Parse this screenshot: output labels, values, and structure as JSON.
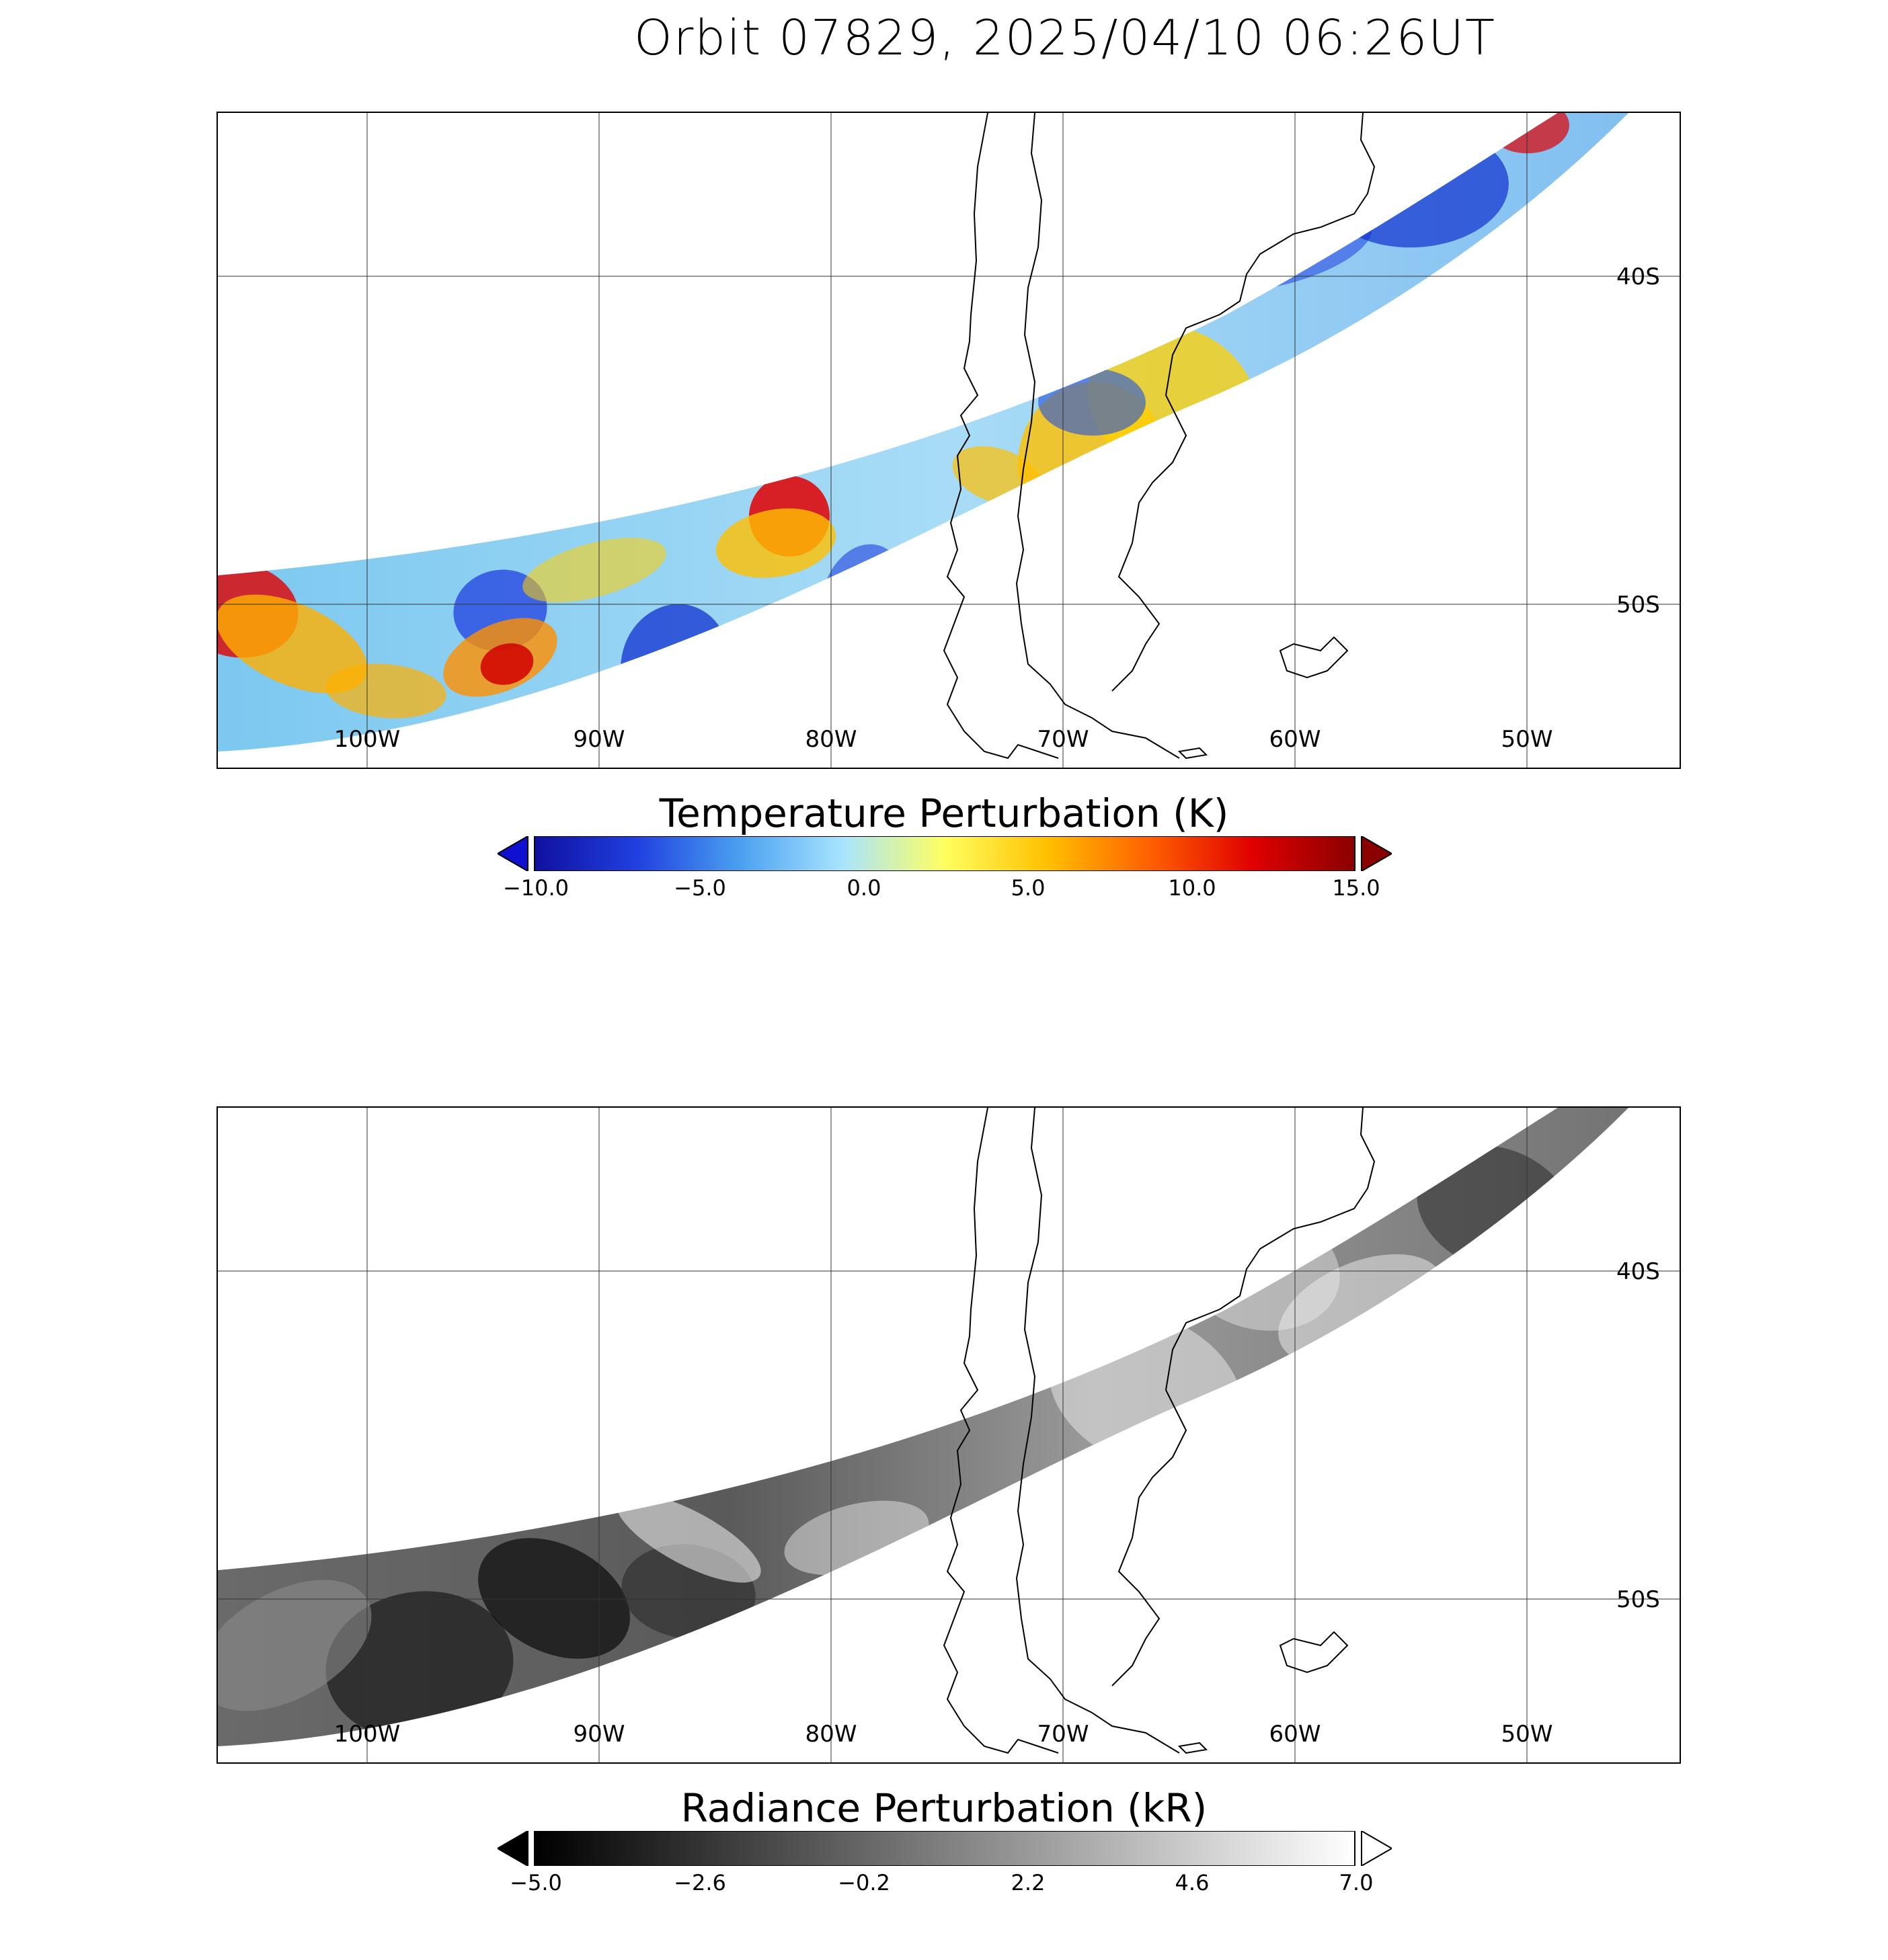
{
  "title": "Orbit 07829, 2025/04/10 06:26UT",
  "panels": [
    {
      "name": "temperature",
      "colorbar_title": "Temperature Perturbation (K)",
      "colorbar_ticks": [
        "−10.0",
        "−5.0",
        "0.0",
        "5.0",
        "10.0",
        "15.0"
      ],
      "colormap": [
        "#1010a0",
        "#2040e0",
        "#4aa0f0",
        "#a8e4ff",
        "#ffff60",
        "#ffc000",
        "#ff6000",
        "#e00000",
        "#8b0000"
      ]
    },
    {
      "name": "radiance",
      "colorbar_title": "Radiance Perturbation (kR)",
      "colorbar_ticks": [
        "−5.0",
        "−2.6",
        "−0.2",
        "2.2",
        "4.6",
        "7.0"
      ],
      "colormap": [
        "#000000",
        "#ffffff"
      ]
    }
  ],
  "map": {
    "lon_labels": [
      "100W",
      "90W",
      "80W",
      "70W",
      "60W",
      "50W"
    ],
    "lat_labels": [
      "40S",
      "50S"
    ]
  },
  "chart_data": [
    {
      "type": "heatmap",
      "title": "Orbit 07829, 2025/04/10 06:26UT",
      "colorbar_label": "Temperature Perturbation (K)",
      "color_range": [
        -10.0,
        15.0
      ],
      "colormap": "blue-white-yellow-red",
      "x_axis": "longitude",
      "lon_ticks": [
        "100W",
        "90W",
        "80W",
        "70W",
        "60W",
        "50W"
      ],
      "y_axis": "latitude",
      "lat_ticks": [
        "40S",
        "50S"
      ],
      "grid": true
    },
    {
      "type": "heatmap",
      "colorbar_label": "Radiance Perturbation (kR)",
      "color_range": [
        -5.0,
        7.0
      ],
      "colormap": "grayscale",
      "x_axis": "longitude",
      "lon_ticks": [
        "100W",
        "90W",
        "80W",
        "70W",
        "60W",
        "50W"
      ],
      "y_axis": "latitude",
      "lat_ticks": [
        "40S",
        "50S"
      ],
      "grid": true
    }
  ]
}
